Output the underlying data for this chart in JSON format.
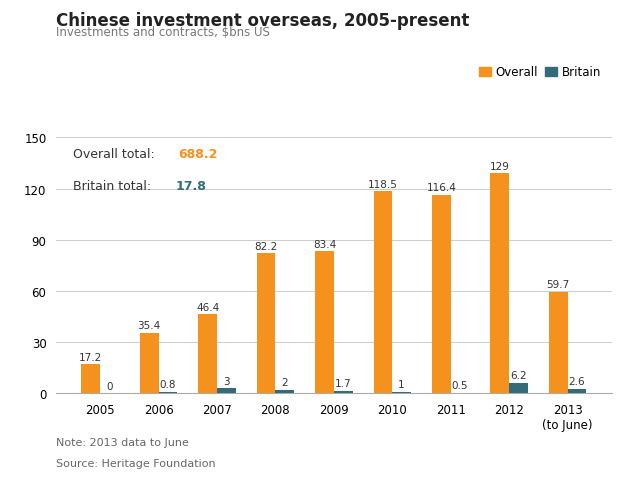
{
  "title": "Chinese investment overseas, 2005-present",
  "subtitle": "Investments and contracts, $bns US",
  "years": [
    "2005",
    "2006",
    "2007",
    "2008",
    "2009",
    "2010",
    "2011",
    "2012",
    "2013\n(to June)"
  ],
  "overall": [
    17.2,
    35.4,
    46.4,
    82.2,
    83.4,
    118.5,
    116.4,
    129,
    59.7
  ],
  "britain": [
    0,
    0.8,
    3,
    2,
    1.7,
    1,
    0.5,
    6.2,
    2.6
  ],
  "overall_color": "#F5921E",
  "britain_color": "#336B7A",
  "overall_total": "688.2",
  "britain_total": "17.8",
  "overall_total_color": "#F5921E",
  "britain_total_color": "#336B7A",
  "ylim": [
    0,
    155
  ],
  "yticks": [
    0,
    30,
    60,
    90,
    120,
    150
  ],
  "note": "Note: 2013 data to June",
  "source": "Source: Heritage Foundation",
  "background_color": "#FFFFFF",
  "grid_color": "#CCCCCC",
  "title_fontsize": 12,
  "subtitle_fontsize": 8.5,
  "annotation_fontsize": 7.5,
  "legend_fontsize": 8.5,
  "tick_fontsize": 8.5,
  "note_fontsize": 8
}
